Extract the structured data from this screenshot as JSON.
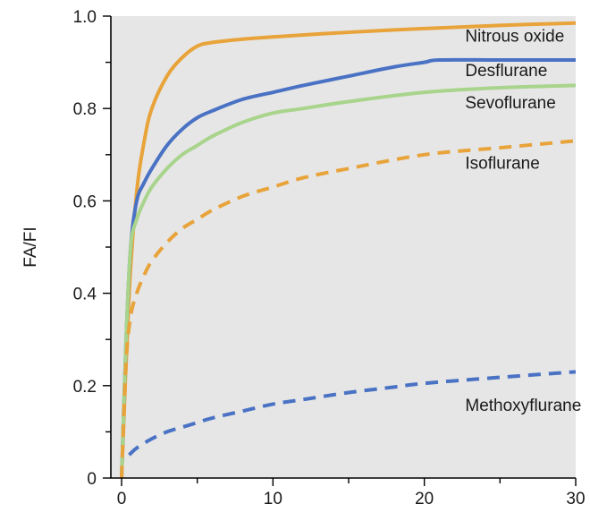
{
  "chart_data": {
    "type": "line",
    "title": "",
    "xlabel": "",
    "ylabel": "FA/FI",
    "xlim": [
      0,
      30
    ],
    "ylim": [
      0,
      1.0
    ],
    "x_ticks": [
      0,
      10,
      20,
      30
    ],
    "y_ticks": [
      0,
      0.2,
      0.4,
      0.6,
      0.8,
      1.0
    ],
    "y_tick_labels": [
      "0",
      "0.2",
      "0.4",
      "0.6",
      "0.8",
      "1.0"
    ],
    "grid": false,
    "background_color": "#e6e6e6",
    "series": [
      {
        "name": "Nitrous oxide",
        "color": "#e8a33a",
        "dash": "solid",
        "x": [
          0,
          0.5,
          1,
          1.5,
          2,
          3,
          4,
          5,
          6,
          8,
          10,
          15,
          20,
          25,
          30
        ],
        "y": [
          0,
          0.4,
          0.62,
          0.73,
          0.8,
          0.87,
          0.91,
          0.935,
          0.943,
          0.95,
          0.955,
          0.965,
          0.973,
          0.98,
          0.985
        ]
      },
      {
        "name": "Desflurane",
        "color": "#4a72c4",
        "dash": "solid",
        "x": [
          0,
          0.3,
          0.6,
          1,
          1.5,
          2,
          3,
          4,
          5,
          6,
          8,
          10,
          12,
          15,
          18,
          20,
          21,
          25,
          30
        ],
        "y": [
          0,
          0.3,
          0.5,
          0.6,
          0.64,
          0.67,
          0.72,
          0.755,
          0.78,
          0.795,
          0.82,
          0.835,
          0.85,
          0.87,
          0.89,
          0.9,
          0.905,
          0.905,
          0.905
        ]
      },
      {
        "name": "Sevoflurane",
        "color": "#a8d48c",
        "dash": "solid",
        "x": [
          0,
          0.3,
          0.6,
          1,
          1.5,
          2,
          3,
          4,
          5,
          6,
          8,
          10,
          12,
          15,
          20,
          25,
          30
        ],
        "y": [
          0,
          0.3,
          0.5,
          0.56,
          0.6,
          0.63,
          0.67,
          0.7,
          0.72,
          0.74,
          0.77,
          0.79,
          0.8,
          0.815,
          0.835,
          0.845,
          0.85
        ]
      },
      {
        "name": "Isoflurane",
        "color": "#e8a33a",
        "dash": "dashed",
        "x": [
          0,
          0.3,
          0.6,
          1,
          1.5,
          2,
          3,
          4,
          5,
          6,
          8,
          10,
          12,
          15,
          20,
          25,
          30
        ],
        "y": [
          0,
          0.25,
          0.35,
          0.4,
          0.44,
          0.47,
          0.51,
          0.54,
          0.56,
          0.58,
          0.61,
          0.63,
          0.65,
          0.67,
          0.7,
          0.715,
          0.73
        ]
      },
      {
        "name": "Methoxyflurane",
        "color": "#4a72c4",
        "dash": "dashed",
        "x": [
          0.5,
          1,
          2,
          3,
          4,
          5,
          6,
          8,
          10,
          12,
          15,
          18,
          20,
          25,
          30
        ],
        "y": [
          0.05,
          0.065,
          0.085,
          0.1,
          0.11,
          0.12,
          0.13,
          0.145,
          0.16,
          0.17,
          0.185,
          0.197,
          0.205,
          0.218,
          0.23
        ]
      }
    ],
    "annotations": [
      {
        "text": "Nitrous oxide",
        "x": 22.7,
        "y": 0.945
      },
      {
        "text": "Desflurane",
        "x": 22.7,
        "y": 0.87
      },
      {
        "text": "Sevoflurane",
        "x": 22.7,
        "y": 0.8
      },
      {
        "text": "Isoflurane",
        "x": 22.7,
        "y": 0.67
      },
      {
        "text": "Methoxyflurane",
        "x": 22.7,
        "y": 0.145
      }
    ]
  }
}
